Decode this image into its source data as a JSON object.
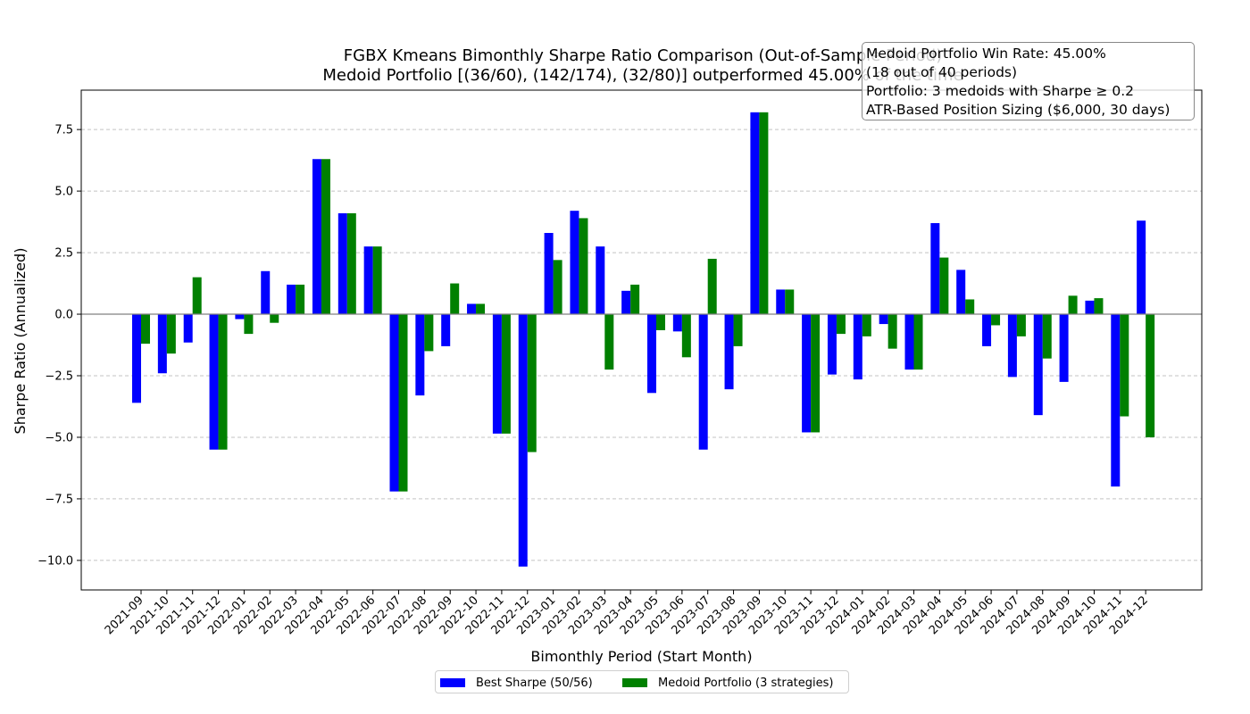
{
  "chart_data": {
    "type": "bar",
    "title": "FGBX Kmeans Bimonthly Sharpe Ratio Comparison (Out-of-Sample Period)",
    "subtitle": "Medoid Portfolio [(36/60), (142/174), (32/80)] outperformed 45.00% of the time",
    "xlabel": "Bimonthly Period (Start Month)",
    "ylabel": "Sharpe Ratio (Annualized)",
    "ylim": [
      -11.2,
      9.1
    ],
    "yticks": [
      -10.0,
      -7.5,
      -5.0,
      -2.5,
      0.0,
      2.5,
      5.0,
      7.5
    ],
    "ytick_labels": [
      "−10.0",
      "−7.5",
      "−5.0",
      "−2.5",
      "0.0",
      "2.5",
      "5.0",
      "7.5"
    ],
    "grid": "y-dashed",
    "legend_position": "bottom-center",
    "categories": [
      "2021-09",
      "2021-10",
      "2021-11",
      "2021-12",
      "2022-01",
      "2022-02",
      "2022-03",
      "2022-04",
      "2022-05",
      "2022-06",
      "2022-07",
      "2022-08",
      "2022-09",
      "2022-10",
      "2022-11",
      "2022-12",
      "2023-01",
      "2023-02",
      "2023-03",
      "2023-04",
      "2023-05",
      "2023-06",
      "2023-07",
      "2023-08",
      "2023-09",
      "2023-10",
      "2023-11",
      "2023-12",
      "2024-01",
      "2024-02",
      "2024-03",
      "2024-04",
      "2024-05",
      "2024-06",
      "2024-07",
      "2024-08",
      "2024-09",
      "2024-10",
      "2024-11",
      "2024-12"
    ],
    "series": [
      {
        "name": "Best Sharpe (50/56)",
        "color": "#0000ff",
        "values": [
          -3.6,
          -2.4,
          -1.15,
          -5.5,
          -0.2,
          1.75,
          1.2,
          6.3,
          4.1,
          2.75,
          -7.2,
          -3.3,
          -1.3,
          0.42,
          -4.85,
          -10.25,
          3.3,
          4.2,
          2.75,
          0.95,
          -3.2,
          -0.7,
          -5.5,
          -3.05,
          8.2,
          1.0,
          -4.8,
          -2.45,
          -2.65,
          -0.4,
          -2.25,
          3.7,
          1.8,
          -1.3,
          -2.55,
          -4.1,
          -2.75,
          0.55,
          -7.0,
          3.8
        ]
      },
      {
        "name": "Medoid Portfolio (3 strategies)",
        "color": "#008000",
        "values": [
          -1.2,
          -1.6,
          1.5,
          -5.5,
          -0.8,
          -0.35,
          1.2,
          6.3,
          4.1,
          2.75,
          -7.2,
          -1.5,
          1.25,
          0.42,
          -4.85,
          -5.6,
          2.2,
          3.9,
          -2.25,
          1.2,
          -0.65,
          -1.75,
          2.25,
          -1.3,
          8.2,
          1.0,
          -4.8,
          -0.8,
          -0.9,
          -1.4,
          -2.25,
          2.3,
          0.6,
          -0.45,
          -0.9,
          -1.8,
          0.75,
          0.65,
          -4.15,
          -5.0
        ]
      }
    ],
    "annotation": [
      "Medoid Portfolio Win Rate: 45.00%",
      "(18 out of 40 periods)",
      "Portfolio: 3 medoids with Sharpe ≥ 0.2",
      "ATR-Based Position Sizing ($6,000, 30 days)"
    ]
  }
}
